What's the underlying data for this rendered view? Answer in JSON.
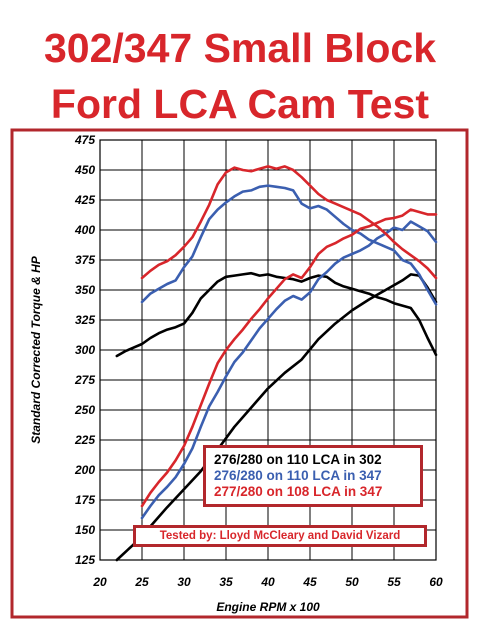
{
  "chart_data": {
    "type": "line",
    "title_line1": "302/347 Small Block",
    "title_line2": "Ford LCA Cam Test",
    "xlabel": "Engine RPM x 100",
    "ylabel": "Standard Corrected Torque & HP",
    "xlim": [
      20,
      60
    ],
    "ylim": [
      125,
      475
    ],
    "xticks": [
      20,
      25,
      30,
      35,
      40,
      45,
      50,
      55,
      60
    ],
    "yticks": [
      125,
      150,
      175,
      200,
      225,
      250,
      275,
      300,
      325,
      350,
      375,
      400,
      425,
      450,
      475
    ],
    "grid": true,
    "legend_position": "bottom-right",
    "credit": "Tested by: Lloyd McCleary and David Vizard",
    "colors": {
      "title": "#d8262b",
      "frame": "#b2272c",
      "black": "#000000",
      "blue": "#3b5fb0",
      "red": "#d8262b"
    },
    "series": [
      {
        "name": "276/280 on 110 LCA in 302",
        "color": "#000000",
        "torque": {
          "x": [
            22,
            23,
            24,
            25,
            26,
            27,
            28,
            29,
            30,
            31,
            32,
            33,
            34,
            35,
            36,
            37,
            38,
            39,
            40,
            41,
            42,
            43,
            44,
            45,
            46,
            47,
            48,
            49,
            50,
            51,
            52,
            53,
            54,
            55,
            56,
            57,
            58,
            59,
            60
          ],
          "y": [
            295,
            299,
            302,
            305,
            310,
            314,
            317,
            319,
            322,
            331,
            343,
            350,
            357,
            361,
            362,
            363,
            364,
            362,
            363,
            361,
            360,
            359,
            357,
            360,
            362,
            361,
            356,
            353,
            351,
            349,
            347,
            344,
            342,
            339,
            337,
            335,
            325,
            310,
            296
          ]
        },
        "hp": {
          "x": [
            22,
            24,
            26,
            28,
            30,
            32,
            34,
            36,
            38,
            40,
            42,
            44,
            46,
            48,
            50,
            52,
            54,
            56,
            57,
            58,
            59,
            60
          ],
          "y": [
            125,
            138,
            153,
            169,
            184,
            199,
            217,
            236,
            252,
            268,
            281,
            292,
            309,
            322,
            333,
            342,
            350,
            358,
            363,
            362,
            352,
            340
          ]
        }
      },
      {
        "name": "276/280 on 110 LCA in 347",
        "color": "#3b5fb0",
        "torque": {
          "x": [
            25,
            26,
            27,
            28,
            29,
            30,
            31,
            32,
            33,
            34,
            35,
            36,
            37,
            38,
            39,
            40,
            41,
            42,
            43,
            44,
            45,
            46,
            47,
            48,
            49,
            50,
            51,
            52,
            53,
            54,
            55,
            56,
            57,
            58,
            59,
            60
          ],
          "y": [
            340,
            347,
            351,
            355,
            358,
            369,
            378,
            394,
            409,
            417,
            423,
            428,
            432,
            433,
            436,
            437,
            436,
            435,
            433,
            422,
            418,
            420,
            417,
            411,
            405,
            400,
            397,
            392,
            389,
            386,
            383,
            375,
            372,
            363,
            350,
            338
          ]
        },
        "hp": {
          "x": [
            25,
            26,
            27,
            28,
            29,
            30,
            31,
            32,
            33,
            34,
            35,
            36,
            37,
            38,
            39,
            40,
            41,
            42,
            43,
            44,
            45,
            46,
            47,
            48,
            49,
            50,
            51,
            52,
            53,
            54,
            55,
            56,
            57,
            58,
            59,
            60
          ],
          "y": [
            160,
            170,
            179,
            186,
            194,
            205,
            218,
            236,
            253,
            265,
            278,
            290,
            298,
            308,
            318,
            326,
            334,
            341,
            345,
            342,
            348,
            359,
            365,
            372,
            377,
            380,
            383,
            387,
            393,
            397,
            402,
            400,
            407,
            403,
            399,
            390
          ]
        }
      },
      {
        "name": "277/280 on 108 LCA in 347",
        "color": "#d8262b",
        "torque": {
          "x": [
            25,
            26,
            27,
            28,
            29,
            30,
            31,
            32,
            33,
            34,
            35,
            36,
            37,
            38,
            39,
            40,
            41,
            42,
            43,
            44,
            45,
            46,
            47,
            48,
            49,
            50,
            51,
            52,
            53,
            54,
            55,
            56,
            57,
            58,
            59,
            60
          ],
          "y": [
            360,
            366,
            371,
            374,
            379,
            386,
            394,
            407,
            421,
            438,
            448,
            452,
            450,
            449,
            451,
            453,
            451,
            453,
            450,
            444,
            437,
            430,
            425,
            422,
            419,
            416,
            413,
            408,
            403,
            397,
            390,
            384,
            379,
            374,
            368,
            360
          ]
        },
        "hp": {
          "x": [
            25,
            26,
            27,
            28,
            29,
            30,
            31,
            32,
            33,
            34,
            35,
            36,
            37,
            38,
            39,
            40,
            41,
            42,
            43,
            44,
            45,
            46,
            47,
            48,
            49,
            50,
            51,
            52,
            53,
            54,
            55,
            56,
            57,
            58,
            59,
            60
          ],
          "y": [
            170,
            181,
            190,
            198,
            208,
            220,
            236,
            254,
            272,
            289,
            300,
            309,
            317,
            326,
            334,
            343,
            351,
            359,
            363,
            360,
            369,
            380,
            386,
            389,
            393,
            396,
            401,
            403,
            406,
            409,
            410,
            412,
            417,
            415,
            413,
            413
          ]
        }
      }
    ]
  }
}
